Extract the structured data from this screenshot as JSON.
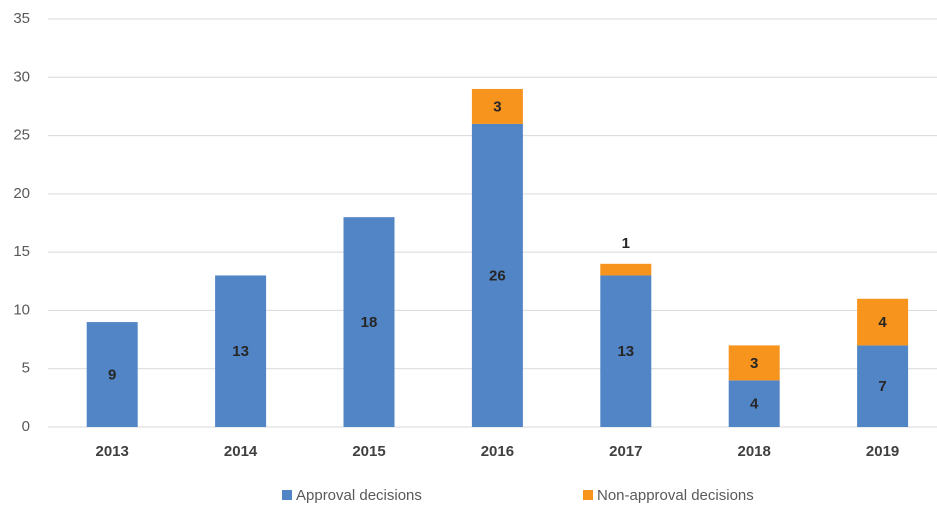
{
  "chart_data": {
    "type": "stacked_bar",
    "categories": [
      "2013",
      "2014",
      "2015",
      "2016",
      "2017",
      "2018",
      "2019"
    ],
    "series": [
      {
        "name": "Approval decisions",
        "color": "#5285c6",
        "values": [
          9,
          13,
          18,
          26,
          13,
          4,
          7
        ]
      },
      {
        "name": "Non-approval decisions",
        "color": "#f7941d",
        "values": [
          null,
          null,
          null,
          3,
          1,
          3,
          4
        ]
      }
    ],
    "ylim": [
      0,
      35
    ],
    "yticks": [
      0,
      5,
      10,
      15,
      20,
      25,
      30,
      35
    ],
    "grid": true,
    "legend": "bottom"
  }
}
